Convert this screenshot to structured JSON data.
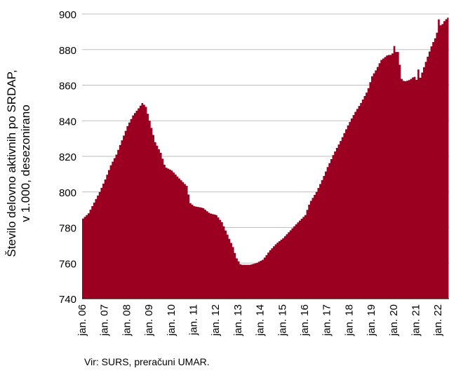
{
  "chart_data": {
    "type": "area",
    "ylabel_lines": [
      "Število delovno aktivnih po SRDAP,",
      "v 1.000, desezonirano"
    ],
    "ylim": [
      740,
      900
    ],
    "yticks": [
      740,
      760,
      780,
      800,
      820,
      840,
      860,
      880,
      900
    ],
    "xlim": [
      2006.0,
      2022.5
    ],
    "xticks": [
      {
        "x": 2006,
        "label": "jan. 06"
      },
      {
        "x": 2007,
        "label": "jan. 07"
      },
      {
        "x": 2008,
        "label": "jan. 08"
      },
      {
        "x": 2009,
        "label": "jan. 09"
      },
      {
        "x": 2010,
        "label": "jan. 10"
      },
      {
        "x": 2011,
        "label": "jan. 11"
      },
      {
        "x": 2012,
        "label": "jan. 12"
      },
      {
        "x": 2013,
        "label": "jan. 13"
      },
      {
        "x": 2014,
        "label": "jan. 14"
      },
      {
        "x": 2015,
        "label": "jan. 15"
      },
      {
        "x": 2016,
        "label": "jan. 16"
      },
      {
        "x": 2017,
        "label": "jan. 17"
      },
      {
        "x": 2018,
        "label": "jan. 18"
      },
      {
        "x": 2019,
        "label": "jan. 19"
      },
      {
        "x": 2020,
        "label": "jan. 20"
      },
      {
        "x": 2021,
        "label": "jan. 21"
      },
      {
        "x": 2022,
        "label": "jan. 22"
      }
    ],
    "grid": true,
    "color": "#9b0020",
    "points": [
      [
        2006.0,
        785
      ],
      [
        2006.25,
        788
      ],
      [
        2006.5,
        794
      ],
      [
        2006.75,
        800
      ],
      [
        2007.0,
        807
      ],
      [
        2007.25,
        815
      ],
      [
        2007.5,
        821
      ],
      [
        2007.75,
        829
      ],
      [
        2008.0,
        837
      ],
      [
        2008.25,
        843
      ],
      [
        2008.5,
        847
      ],
      [
        2008.67,
        850
      ],
      [
        2008.83,
        848
      ],
      [
        2009.0,
        840
      ],
      [
        2009.25,
        828
      ],
      [
        2009.5,
        822
      ],
      [
        2009.7,
        814
      ],
      [
        2010.0,
        812
      ],
      [
        2010.3,
        808
      ],
      [
        2010.7,
        803
      ],
      [
        2010.8,
        794
      ],
      [
        2011.0,
        792
      ],
      [
        2011.4,
        791
      ],
      [
        2011.7,
        788
      ],
      [
        2012.0,
        787
      ],
      [
        2012.25,
        783
      ],
      [
        2012.5,
        776
      ],
      [
        2012.75,
        769
      ],
      [
        2012.9,
        763
      ],
      [
        2013.1,
        759
      ],
      [
        2013.5,
        759
      ],
      [
        2013.8,
        760
      ],
      [
        2014.1,
        762
      ],
      [
        2014.4,
        767
      ],
      [
        2014.7,
        771
      ],
      [
        2015.0,
        774
      ],
      [
        2015.3,
        778
      ],
      [
        2015.6,
        782
      ],
      [
        2016.0,
        787
      ],
      [
        2016.2,
        794
      ],
      [
        2016.5,
        800
      ],
      [
        2016.8,
        808
      ],
      [
        2017.0,
        814
      ],
      [
        2017.3,
        822
      ],
      [
        2017.6,
        829
      ],
      [
        2017.9,
        837
      ],
      [
        2018.2,
        844
      ],
      [
        2018.5,
        850
      ],
      [
        2018.8,
        857
      ],
      [
        2019.0,
        865
      ],
      [
        2019.2,
        869
      ],
      [
        2019.4,
        874
      ],
      [
        2019.7,
        877
      ],
      [
        2019.9,
        877
      ],
      [
        2020.0,
        882
      ],
      [
        2020.1,
        878
      ],
      [
        2020.2,
        879
      ],
      [
        2020.3,
        864
      ],
      [
        2020.45,
        862
      ],
      [
        2020.7,
        863
      ],
      [
        2020.9,
        865
      ],
      [
        2021.0,
        863
      ],
      [
        2021.08,
        869
      ],
      [
        2021.17,
        864
      ],
      [
        2021.3,
        869
      ],
      [
        2021.5,
        876
      ],
      [
        2021.7,
        883
      ],
      [
        2021.9,
        888
      ],
      [
        2022.0,
        897
      ],
      [
        2022.1,
        893
      ],
      [
        2022.25,
        896
      ],
      [
        2022.4,
        898
      ]
    ]
  },
  "source": "Vir: SURS, preračuni UMAR."
}
